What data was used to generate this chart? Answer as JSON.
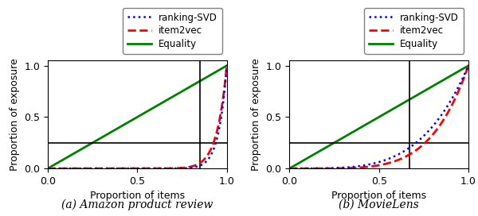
{
  "subplots": [
    {
      "title": "(a) Amazon product review",
      "vline": 0.85,
      "hline": 0.25,
      "svd_power": 22,
      "i2v_power": 18
    },
    {
      "title": "(b) MovieLens",
      "vline": 0.67,
      "hline": 0.25,
      "svd_power": 4,
      "i2v_power": 5
    }
  ],
  "xlabel": "Proportion of items",
  "ylabel": "Proportion of exposure",
  "legend_labels": [
    "ranking-SVD",
    "item2vec",
    "Equality"
  ],
  "svd_color": "#0000ff",
  "i2v_color": "#ff0000",
  "eq_color": "#008000",
  "xlim": [
    0.0,
    1.0
  ],
  "ylim": [
    0.0,
    1.05
  ],
  "xticks": [
    0.0,
    0.5,
    1.0
  ],
  "yticks": [
    0.0,
    0.5,
    1.0
  ],
  "figsize": [
    6.0,
    2.72
  ],
  "dpi": 100
}
